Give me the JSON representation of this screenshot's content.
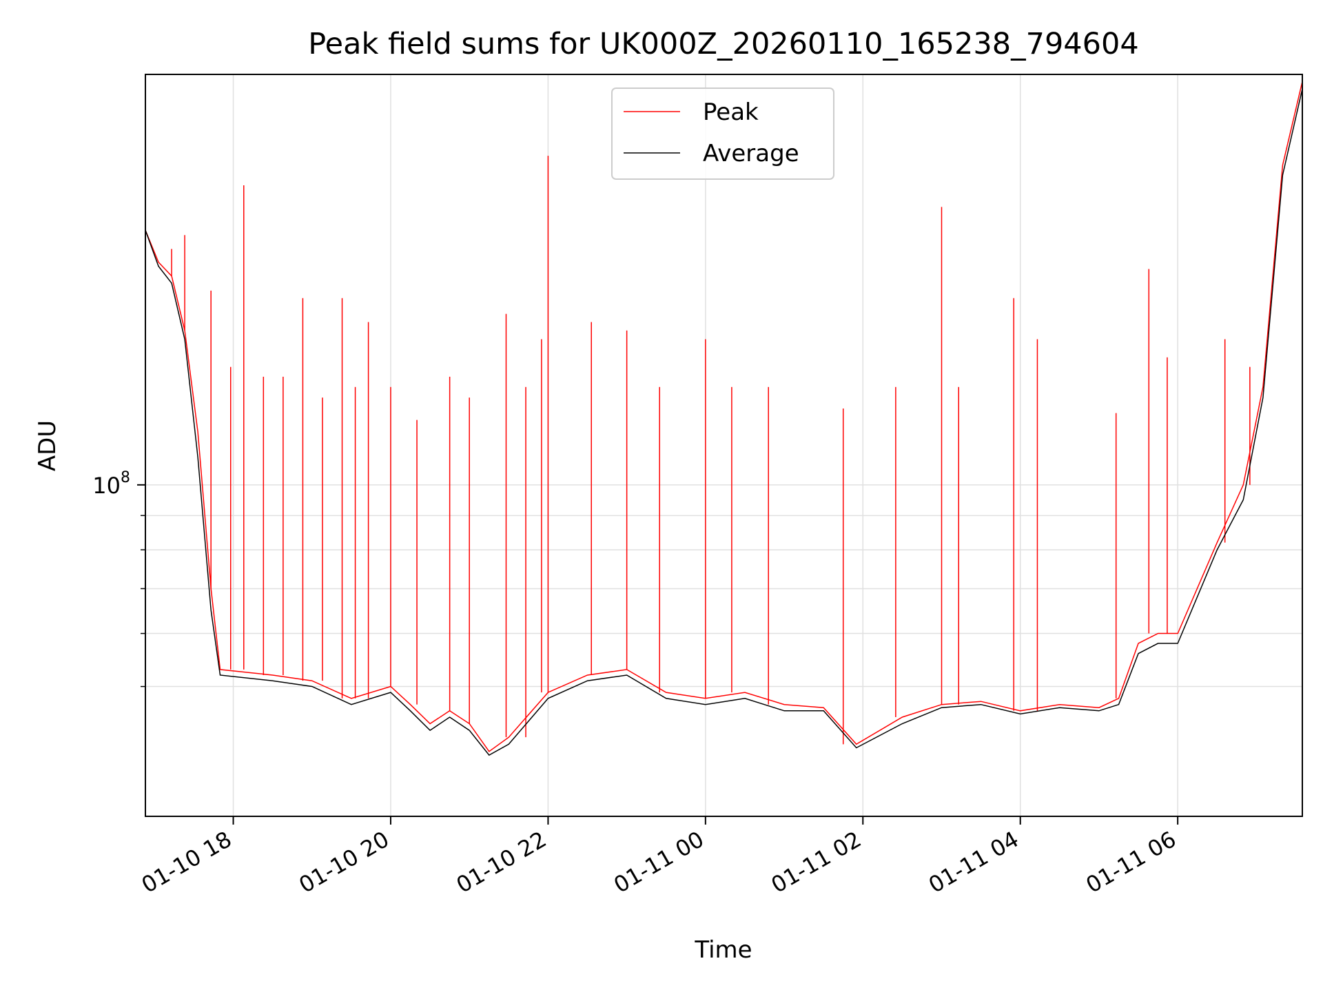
{
  "chart_data": {
    "type": "line",
    "title": "Peak field sums for UK000Z_20260110_165238_794604",
    "xlabel": "Time",
    "ylabel": "ADU",
    "yscale": "log",
    "xlim": [
      "2026-01-10 16:53",
      "2026-01-11 07:35"
    ],
    "ylim": [
      32000000,
      410000000
    ],
    "grid": true,
    "legend_position": "upper-center",
    "x_ticks": [
      {
        "time": "2026-01-10 18:00",
        "label": "01-10 18"
      },
      {
        "time": "2026-01-10 20:00",
        "label": "01-10 20"
      },
      {
        "time": "2026-01-10 22:00",
        "label": "01-10 22"
      },
      {
        "time": "2026-01-11 00:00",
        "label": "01-11 00"
      },
      {
        "time": "2026-01-11 02:00",
        "label": "01-11 02"
      },
      {
        "time": "2026-01-11 04:00",
        "label": "01-11 04"
      },
      {
        "time": "2026-01-11 06:00",
        "label": "01-11 06"
      }
    ],
    "y_ticks": [
      {
        "value": 100000000,
        "label_base": "10",
        "label_exp": "8"
      }
    ],
    "y_minor_ticks": [
      50000000,
      60000000,
      70000000,
      80000000,
      90000000
    ],
    "series": [
      {
        "name": "Peak",
        "color": "#ff0000",
        "points": [
          [
            "2026-01-10 16:53",
            240000000
          ],
          [
            "2026-01-10 17:03",
            215000000
          ],
          [
            "2026-01-10 17:13",
            205000000
          ],
          [
            "2026-01-10 17:23",
            170000000
          ],
          [
            "2026-01-10 17:33",
            120000000
          ],
          [
            "2026-01-10 17:43",
            70000000
          ],
          [
            "2026-01-10 17:50",
            53000000
          ],
          [
            "2026-01-10 18:30",
            52000000
          ],
          [
            "2026-01-10 19:00",
            51000000
          ],
          [
            "2026-01-10 19:30",
            48000000
          ],
          [
            "2026-01-10 20:00",
            50000000
          ],
          [
            "2026-01-10 20:15",
            47000000
          ],
          [
            "2026-01-10 20:30",
            44000000
          ],
          [
            "2026-01-10 20:45",
            46000000
          ],
          [
            "2026-01-10 21:00",
            44000000
          ],
          [
            "2026-01-10 21:15",
            40000000
          ],
          [
            "2026-01-10 21:30",
            42000000
          ],
          [
            "2026-01-10 22:00",
            49000000
          ],
          [
            "2026-01-10 22:30",
            52000000
          ],
          [
            "2026-01-10 23:00",
            53000000
          ],
          [
            "2026-01-10 23:30",
            49000000
          ],
          [
            "2026-01-11 00:00",
            48000000
          ],
          [
            "2026-01-11 00:30",
            49000000
          ],
          [
            "2026-01-11 01:00",
            47000000
          ],
          [
            "2026-01-11 01:30",
            46500000
          ],
          [
            "2026-01-11 01:55",
            41000000
          ],
          [
            "2026-01-11 02:30",
            45000000
          ],
          [
            "2026-01-11 03:00",
            47000000
          ],
          [
            "2026-01-11 03:30",
            47500000
          ],
          [
            "2026-01-11 04:00",
            46000000
          ],
          [
            "2026-01-11 04:30",
            47000000
          ],
          [
            "2026-01-11 05:00",
            46500000
          ],
          [
            "2026-01-11 05:15",
            48000000
          ],
          [
            "2026-01-11 05:30",
            58000000
          ],
          [
            "2026-01-11 05:45",
            60000000
          ],
          [
            "2026-01-11 06:00",
            60000000
          ],
          [
            "2026-01-11 06:30",
            82000000
          ],
          [
            "2026-01-11 06:50",
            100000000
          ],
          [
            "2026-01-11 07:05",
            140000000
          ],
          [
            "2026-01-11 07:20",
            300000000
          ],
          [
            "2026-01-11 07:35",
            400000000
          ]
        ],
        "spikes": [
          [
            "2026-01-10 17:13",
            225000000
          ],
          [
            "2026-01-10 17:23",
            236000000
          ],
          [
            "2026-01-10 17:43",
            195000000
          ],
          [
            "2026-01-10 17:58",
            150000000
          ],
          [
            "2026-01-10 18:08",
            280000000
          ],
          [
            "2026-01-10 18:23",
            145000000
          ],
          [
            "2026-01-10 18:38",
            145000000
          ],
          [
            "2026-01-10 18:53",
            190000000
          ],
          [
            "2026-01-10 19:08",
            135000000
          ],
          [
            "2026-01-10 19:23",
            190000000
          ],
          [
            "2026-01-10 19:33",
            140000000
          ],
          [
            "2026-01-10 19:43",
            175000000
          ],
          [
            "2026-01-10 20:00",
            140000000
          ],
          [
            "2026-01-10 20:20",
            125000000
          ],
          [
            "2026-01-10 20:45",
            145000000
          ],
          [
            "2026-01-10 21:00",
            135000000
          ],
          [
            "2026-01-10 21:28",
            180000000
          ],
          [
            "2026-01-10 21:43",
            140000000
          ],
          [
            "2026-01-10 21:55",
            165000000
          ],
          [
            "2026-01-10 22:00",
            310000000
          ],
          [
            "2026-01-10 22:33",
            175000000
          ],
          [
            "2026-01-10 23:00",
            170000000
          ],
          [
            "2026-01-10 23:25",
            140000000
          ],
          [
            "2026-01-11 00:00",
            165000000
          ],
          [
            "2026-01-11 00:20",
            140000000
          ],
          [
            "2026-01-11 00:48",
            140000000
          ],
          [
            "2026-01-11 01:45",
            130000000
          ],
          [
            "2026-01-11 02:25",
            140000000
          ],
          [
            "2026-01-11 03:00",
            260000000
          ],
          [
            "2026-01-11 03:13",
            140000000
          ],
          [
            "2026-01-11 03:55",
            190000000
          ],
          [
            "2026-01-11 04:13",
            165000000
          ],
          [
            "2026-01-11 05:13",
            128000000
          ],
          [
            "2026-01-11 05:38",
            210000000
          ],
          [
            "2026-01-11 05:52",
            155000000
          ],
          [
            "2026-01-11 06:36",
            165000000
          ],
          [
            "2026-01-11 06:55",
            150000000
          ]
        ]
      },
      {
        "name": "Average",
        "color": "#000000",
        "points": [
          [
            "2026-01-10 16:53",
            240000000
          ],
          [
            "2026-01-10 17:03",
            212000000
          ],
          [
            "2026-01-10 17:13",
            200000000
          ],
          [
            "2026-01-10 17:23",
            165000000
          ],
          [
            "2026-01-10 17:33",
            110000000
          ],
          [
            "2026-01-10 17:43",
            65000000
          ],
          [
            "2026-01-10 17:50",
            52000000
          ],
          [
            "2026-01-10 18:30",
            51000000
          ],
          [
            "2026-01-10 19:00",
            50000000
          ],
          [
            "2026-01-10 19:30",
            47000000
          ],
          [
            "2026-01-10 20:00",
            49000000
          ],
          [
            "2026-01-10 20:15",
            46000000
          ],
          [
            "2026-01-10 20:30",
            43000000
          ],
          [
            "2026-01-10 20:45",
            45000000
          ],
          [
            "2026-01-10 21:00",
            43000000
          ],
          [
            "2026-01-10 21:15",
            39500000
          ],
          [
            "2026-01-10 21:30",
            41000000
          ],
          [
            "2026-01-10 22:00",
            48000000
          ],
          [
            "2026-01-10 22:30",
            51000000
          ],
          [
            "2026-01-10 23:00",
            52000000
          ],
          [
            "2026-01-10 23:30",
            48000000
          ],
          [
            "2026-01-11 00:00",
            47000000
          ],
          [
            "2026-01-11 00:30",
            48000000
          ],
          [
            "2026-01-11 01:00",
            46000000
          ],
          [
            "2026-01-11 01:30",
            46000000
          ],
          [
            "2026-01-11 01:55",
            40500000
          ],
          [
            "2026-01-11 02:30",
            44000000
          ],
          [
            "2026-01-11 03:00",
            46500000
          ],
          [
            "2026-01-11 03:30",
            47000000
          ],
          [
            "2026-01-11 04:00",
            45500000
          ],
          [
            "2026-01-11 04:30",
            46500000
          ],
          [
            "2026-01-11 05:00",
            46000000
          ],
          [
            "2026-01-11 05:15",
            47000000
          ],
          [
            "2026-01-11 05:30",
            56000000
          ],
          [
            "2026-01-11 05:45",
            58000000
          ],
          [
            "2026-01-11 06:00",
            58000000
          ],
          [
            "2026-01-11 06:30",
            80000000
          ],
          [
            "2026-01-11 06:50",
            95000000
          ],
          [
            "2026-01-11 07:05",
            135000000
          ],
          [
            "2026-01-11 07:20",
            290000000
          ],
          [
            "2026-01-11 07:35",
            390000000
          ]
        ]
      }
    ]
  }
}
